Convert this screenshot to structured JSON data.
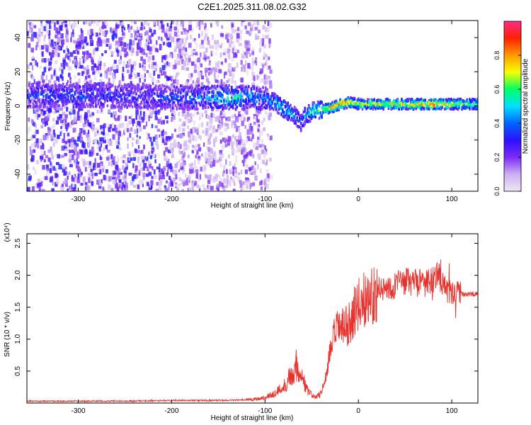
{
  "title": "C2E1.2025.311.08.02.G32",
  "chart_data": [
    {
      "type": "heatmap",
      "xlabel": "Height of straight line (km)",
      "ylabel": "Frequency (Hz)",
      "xlim": [
        -355,
        128
      ],
      "ylim": [
        -50,
        50
      ],
      "xticks": [
        -300,
        -200,
        -100,
        0,
        100
      ],
      "yticks": [
        -40,
        -20,
        0,
        20,
        40
      ],
      "colorbar": {
        "label": "Normalized spectral amplitude",
        "range": [
          0,
          1
        ],
        "ticks": [
          "0.0",
          "0.2",
          "0.4",
          "0.6",
          "0.8"
        ],
        "tick_values": [
          0.0,
          0.2,
          0.4,
          0.6,
          0.8
        ],
        "colors": [
          "#efe6f6",
          "#ccb0f0",
          "#7a2cf6",
          "#2b10ff",
          "#0064ff",
          "#00e0ff",
          "#00ff66",
          "#f6ff00",
          "#ff9a00",
          "#ff2000",
          "#ff2a8a"
        ]
      },
      "ridge": {
        "x": [
          -355,
          -300,
          -260,
          -220,
          -190,
          -160,
          -140,
          -120,
          -100,
          -90,
          -80,
          -70,
          -62,
          -58,
          -50,
          -40,
          -30,
          -20,
          -10,
          0,
          20,
          50,
          80,
          110,
          128
        ],
        "freq": [
          6,
          6,
          6,
          5,
          5,
          5,
          5,
          5,
          4,
          2,
          -2,
          -5,
          -10,
          -6,
          -3,
          -2,
          -1,
          1,
          2,
          1,
          1,
          1,
          1,
          1,
          1
        ],
        "amplitude": [
          0.3,
          0.35,
          0.3,
          0.3,
          0.35,
          0.45,
          0.55,
          0.45,
          0.4,
          0.5,
          0.55,
          0.45,
          0.35,
          0.45,
          0.55,
          0.65,
          0.75,
          0.9,
          0.8,
          0.65,
          0.7,
          0.75,
          0.85,
          0.65,
          0.6
        ]
      }
    },
    {
      "type": "line",
      "xlabel": "Height of straight line (km)",
      "ylabel": "SNR (10 * v/v)",
      "scale_label": "(x10⁴)",
      "xlim": [
        -355,
        128
      ],
      "ylim": [
        0,
        2.65
      ],
      "xticks": [
        -300,
        -200,
        -100,
        0,
        100
      ],
      "yticks": [
        "0.5",
        "1.0",
        "1.5",
        "2.0",
        "2.5"
      ],
      "ytick_values": [
        0.5,
        1.0,
        1.5,
        2.0,
        2.5
      ],
      "color": "#e8312c",
      "series": [
        {
          "x": [
            -355,
            -300,
            -250,
            -200,
            -150,
            -120,
            -100,
            -90,
            -80,
            -72,
            -66,
            -60,
            -55,
            -50,
            -45,
            -40,
            -35,
            -30,
            -25,
            -20,
            -15,
            -10,
            -5,
            0,
            10,
            20,
            30,
            40,
            50,
            60,
            70,
            80,
            85,
            90,
            95,
            100,
            110,
            120,
            128
          ],
          "y": [
            0.03,
            0.03,
            0.03,
            0.04,
            0.04,
            0.05,
            0.08,
            0.15,
            0.25,
            0.45,
            0.6,
            0.4,
            0.2,
            0.12,
            0.1,
            0.15,
            0.4,
            0.8,
            1.1,
            1.2,
            1.15,
            1.25,
            1.4,
            1.55,
            1.65,
            1.75,
            1.8,
            1.85,
            1.9,
            1.9,
            1.85,
            1.9,
            2.1,
            1.85,
            1.75,
            1.72,
            1.71,
            1.7,
            1.7
          ]
        }
      ]
    }
  ]
}
